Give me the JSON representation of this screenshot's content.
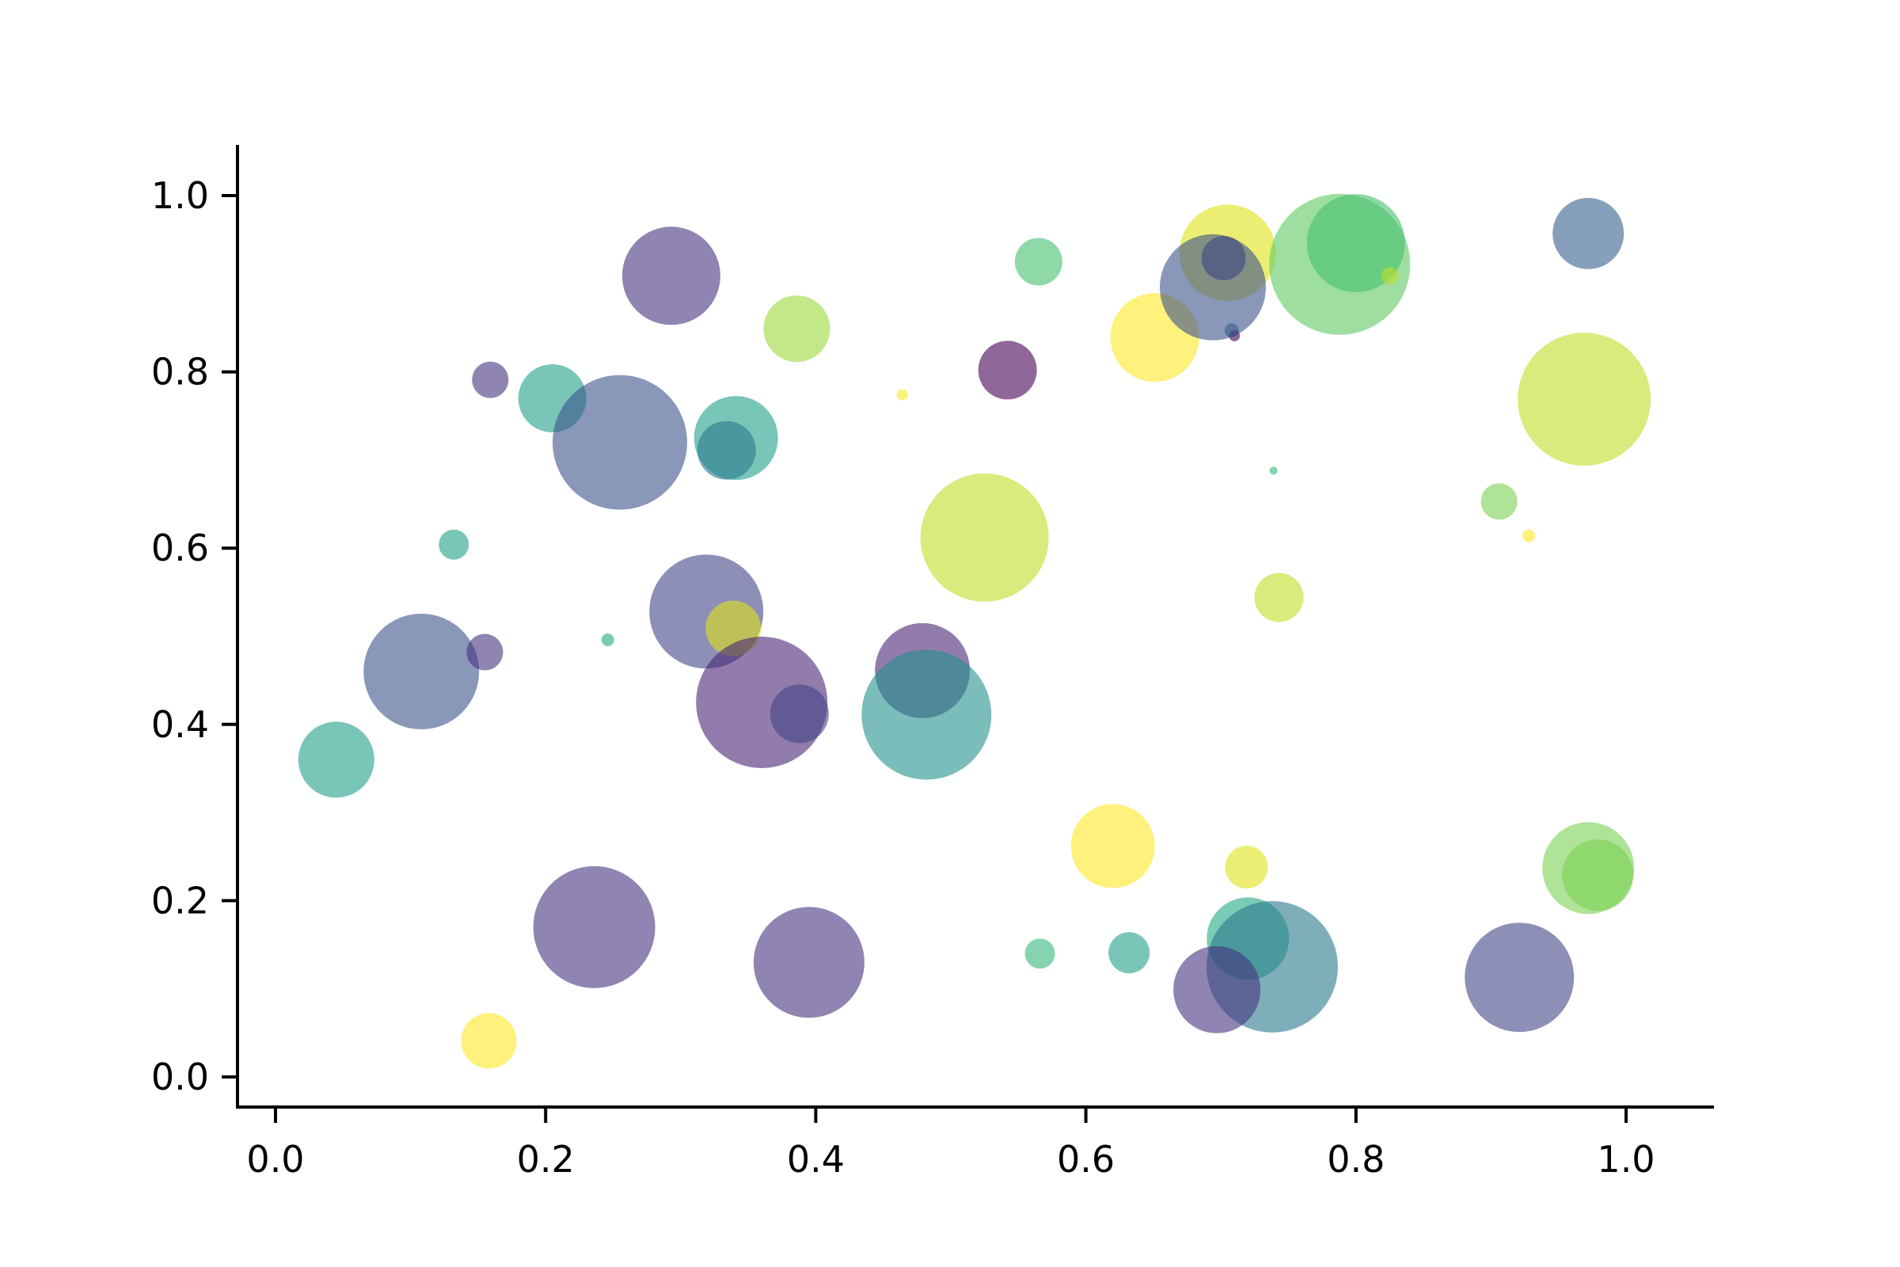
{
  "figure": {
    "background": "#ffffff",
    "title": ""
  },
  "chart_data": {
    "type": "scatter",
    "subtype": "bubble",
    "title": "",
    "xlabel": "",
    "ylabel": "",
    "grid": false,
    "legend": null,
    "colormap": "viridis",
    "marker_alpha": 0.6,
    "axis_color": "#000000",
    "background": "#ffffff",
    "xlim": [
      -0.0281,
      1.0639
    ],
    "ylim": [
      -0.0324,
      1.0575
    ],
    "xticks": {
      "values": [
        0.0,
        0.2,
        0.4,
        0.6,
        0.8,
        1.0
      ],
      "labels": [
        "0.0",
        "0.2",
        "0.4",
        "0.6",
        "0.8",
        "1.0"
      ]
    },
    "yticks": {
      "values": [
        0.0,
        0.2,
        0.4,
        0.6,
        0.8,
        1.0
      ],
      "labels": [
        "0.0",
        "0.2",
        "0.4",
        "0.6",
        "0.8",
        "1.0"
      ]
    },
    "points": [
      {
        "x": 0.293,
        "y": 0.909,
        "r": 62,
        "color": "#46327e"
      },
      {
        "x": 0.386,
        "y": 0.849,
        "r": 42,
        "color": "#9bd93c"
      },
      {
        "x": 0.565,
        "y": 0.925,
        "r": 30,
        "color": "#44bf70"
      },
      {
        "x": 0.705,
        "y": 0.935,
        "r": 61,
        "color": "#dfe318"
      },
      {
        "x": 0.651,
        "y": 0.839,
        "r": 56,
        "color": "#fde725"
      },
      {
        "x": 0.694,
        "y": 0.896,
        "r": 67,
        "color": "#3b528b"
      },
      {
        "x": 0.71,
        "y": 0.841,
        "r": 7,
        "color": "#440154"
      },
      {
        "x": 0.708,
        "y": 0.847,
        "r": 9,
        "color": "#355f8d"
      },
      {
        "x": 0.702,
        "y": 0.929,
        "r": 28,
        "color": "#414487"
      },
      {
        "x": 0.788,
        "y": 0.922,
        "r": 89,
        "color": "#5ec962"
      },
      {
        "x": 0.8,
        "y": 0.946,
        "r": 62,
        "color": "#44bf70"
      },
      {
        "x": 0.825,
        "y": 0.909,
        "r": 11,
        "color": "#bddf26"
      },
      {
        "x": 0.972,
        "y": 0.957,
        "r": 45,
        "color": "#355f8d"
      },
      {
        "x": 0.969,
        "y": 0.769,
        "r": 84,
        "color": "#bddf26"
      },
      {
        "x": 0.906,
        "y": 0.653,
        "r": 23,
        "color": "#7ad151"
      },
      {
        "x": 0.928,
        "y": 0.614,
        "r": 8,
        "color": "#fde725"
      },
      {
        "x": 0.159,
        "y": 0.791,
        "r": 23,
        "color": "#46327e"
      },
      {
        "x": 0.205,
        "y": 0.77,
        "r": 43,
        "color": "#1f9e89"
      },
      {
        "x": 0.255,
        "y": 0.72,
        "r": 85,
        "color": "#3b528b"
      },
      {
        "x": 0.341,
        "y": 0.725,
        "r": 53,
        "color": "#1f9e89"
      },
      {
        "x": 0.334,
        "y": 0.711,
        "r": 37,
        "color": "#2a788e"
      },
      {
        "x": 0.542,
        "y": 0.802,
        "r": 37,
        "color": "#440154"
      },
      {
        "x": 0.464,
        "y": 0.774,
        "r": 7,
        "color": "#fde725"
      },
      {
        "x": 0.525,
        "y": 0.612,
        "r": 81,
        "color": "#bddf26"
      },
      {
        "x": 0.132,
        "y": 0.604,
        "r": 19,
        "color": "#1f9e89"
      },
      {
        "x": 0.108,
        "y": 0.46,
        "r": 73,
        "color": "#3b528b"
      },
      {
        "x": 0.155,
        "y": 0.482,
        "r": 23,
        "color": "#46327e"
      },
      {
        "x": 0.246,
        "y": 0.496,
        "r": 8,
        "color": "#22a884"
      },
      {
        "x": 0.319,
        "y": 0.528,
        "r": 72,
        "color": "#414487"
      },
      {
        "x": 0.339,
        "y": 0.509,
        "r": 35,
        "color": "#dfe318"
      },
      {
        "x": 0.36,
        "y": 0.425,
        "r": 83,
        "color": "#482475"
      },
      {
        "x": 0.388,
        "y": 0.412,
        "r": 37,
        "color": "#414487"
      },
      {
        "x": 0.045,
        "y": 0.36,
        "r": 48,
        "color": "#1f9e89"
      },
      {
        "x": 0.479,
        "y": 0.461,
        "r": 60,
        "color": "#482475"
      },
      {
        "x": 0.482,
        "y": 0.411,
        "r": 82,
        "color": "#21918c"
      },
      {
        "x": 0.743,
        "y": 0.544,
        "r": 31,
        "color": "#bddf26"
      },
      {
        "x": 0.739,
        "y": 0.688,
        "r": 5,
        "color": "#35b779"
      },
      {
        "x": 0.62,
        "y": 0.262,
        "r": 53,
        "color": "#fde725"
      },
      {
        "x": 0.719,
        "y": 0.238,
        "r": 27,
        "color": "#dfe318"
      },
      {
        "x": 0.236,
        "y": 0.17,
        "r": 77,
        "color": "#46327e"
      },
      {
        "x": 0.395,
        "y": 0.13,
        "r": 70,
        "color": "#46327e"
      },
      {
        "x": 0.158,
        "y": 0.041,
        "r": 35,
        "color": "#fde725"
      },
      {
        "x": 0.566,
        "y": 0.14,
        "r": 19,
        "color": "#35b779"
      },
      {
        "x": 0.632,
        "y": 0.141,
        "r": 26,
        "color": "#1f9e89"
      },
      {
        "x": 0.72,
        "y": 0.157,
        "r": 52,
        "color": "#22a884"
      },
      {
        "x": 0.738,
        "y": 0.125,
        "r": 83,
        "color": "#2a788e"
      },
      {
        "x": 0.697,
        "y": 0.099,
        "r": 55,
        "color": "#46327e"
      },
      {
        "x": 0.921,
        "y": 0.113,
        "r": 69,
        "color": "#414487"
      },
      {
        "x": 0.972,
        "y": 0.237,
        "r": 58,
        "color": "#7ad151"
      },
      {
        "x": 0.979,
        "y": 0.229,
        "r": 45,
        "color": "#7ad151"
      }
    ]
  }
}
